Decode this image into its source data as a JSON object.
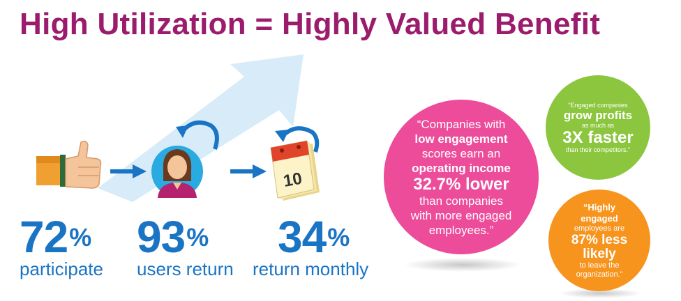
{
  "title": "High Utilization = Highly Valued Benefit",
  "colors": {
    "title": "#9b1c6c",
    "stat_blue": "#1a74c4",
    "pink": "#ec4c9a",
    "green": "#8cc63f",
    "orange": "#f7941d",
    "arrow_light": "#d7ecf8"
  },
  "stats": [
    {
      "value": "72",
      "unit": "%",
      "label": "participate",
      "icon": "thumbs-up-icon"
    },
    {
      "value": "93",
      "unit": "%",
      "label": "users return",
      "icon": "person-avatar-icon"
    },
    {
      "value": "34",
      "unit": "%",
      "label": "return monthly",
      "icon": "calendar-icon"
    }
  ],
  "calendar_day": "10",
  "pink_circle": {
    "l1": "“Companies with",
    "l2": "low engagement",
    "l3": "scores earn an",
    "l4": "operating income",
    "l5": "32.7% lower",
    "l6": "than companies",
    "l7": "with more engaged",
    "l8": "employees.”"
  },
  "green_circle": {
    "l1": "“Engaged companies",
    "l2": "grow profits",
    "l3": "as much as",
    "l4": "3X faster",
    "l5": "than their competitors.”"
  },
  "orange_circle": {
    "l1": "“Highly",
    "l2": "engaged",
    "l3": "employees are",
    "l4": "87% less",
    "l5": "likely",
    "l6": "to leave the",
    "l7": "organization.”"
  }
}
